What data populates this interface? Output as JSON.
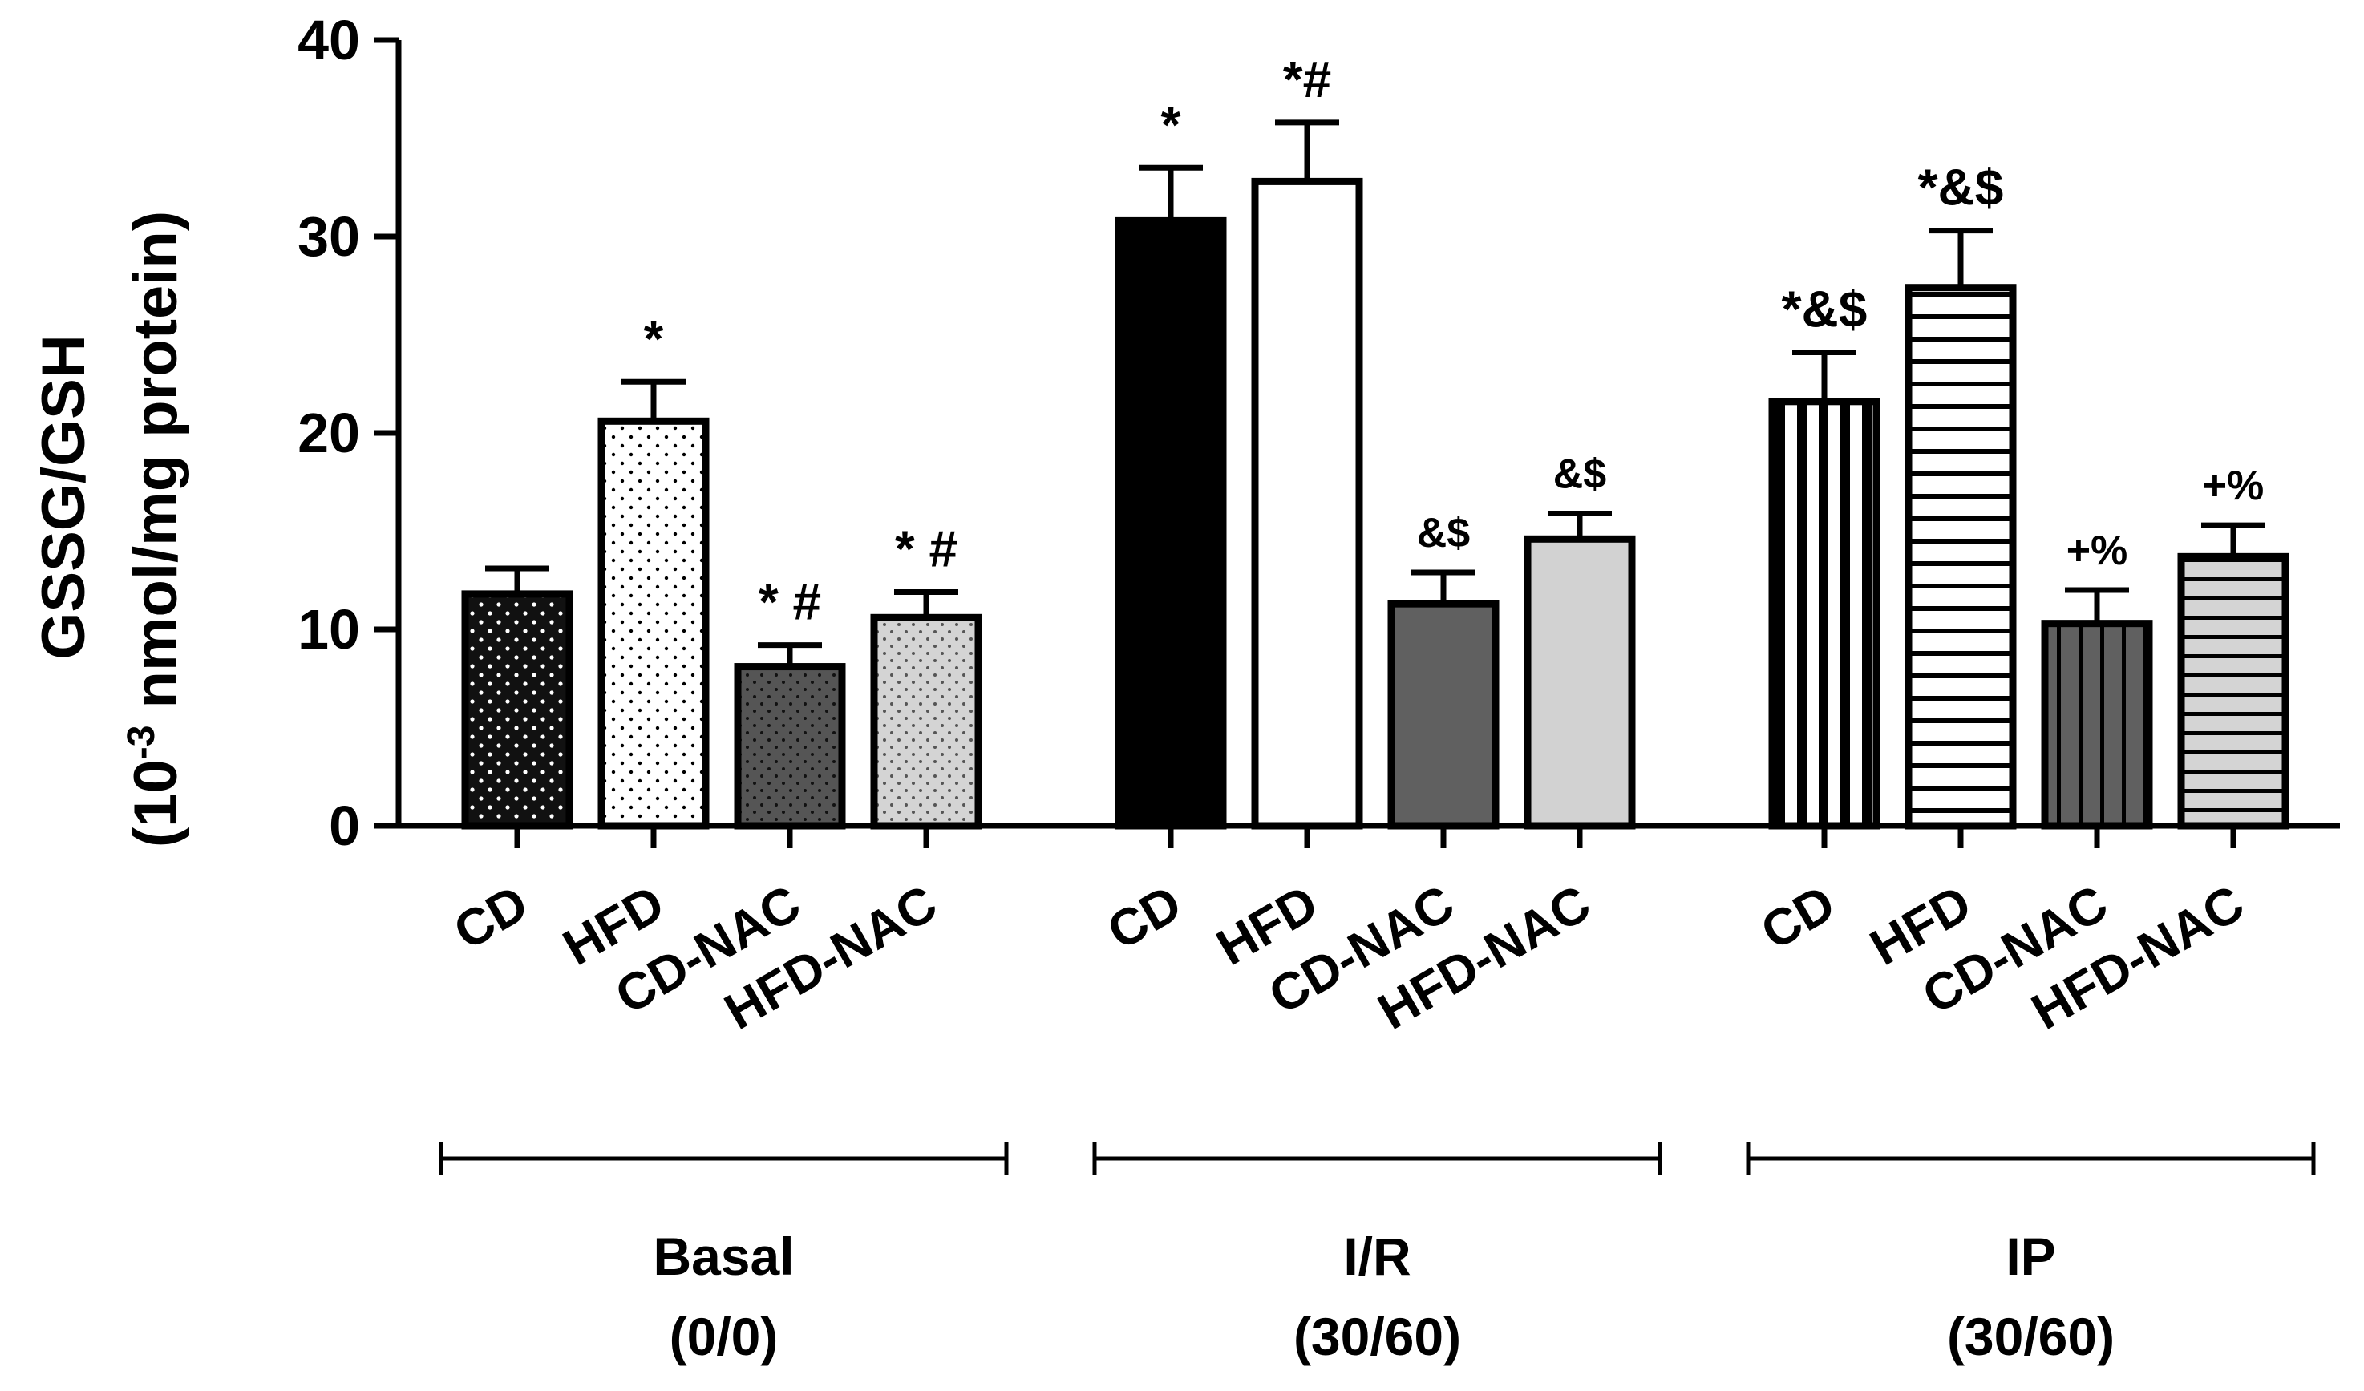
{
  "chart_data": {
    "type": "bar",
    "title": "",
    "ylabel_line1": "GSSG/GSH",
    "ylabel_line2_prefix": "(10",
    "ylabel_line2_exp": "-3",
    "ylabel_line2_suffix": " nmol/mg protein)",
    "ylim": [
      0,
      40
    ],
    "yticks": [
      "0",
      "10",
      "20",
      "30",
      "40"
    ],
    "ytick_values": [
      0,
      10,
      20,
      30,
      40
    ],
    "groups": [
      {
        "name": "Basal",
        "subtitle": "(0/0)",
        "bars": [
          {
            "category": "CD",
            "value": 11.8,
            "error": 1.3,
            "annotation": "",
            "fill": "#1a1a1a",
            "pattern": "dots-white"
          },
          {
            "category": "HFD",
            "value": 20.6,
            "error": 2.0,
            "annotation": "*",
            "fill": "#ffffff",
            "pattern": "dots-black"
          },
          {
            "category": "CD-NAC",
            "value": 8.1,
            "error": 1.1,
            "annotation": "* #",
            "fill": "#555555",
            "pattern": "dots-dark"
          },
          {
            "category": "HFD-NAC",
            "value": 10.6,
            "error": 1.3,
            "annotation": "*  #",
            "fill": "#d4d4d4",
            "pattern": "dots-dark"
          }
        ]
      },
      {
        "name": "I/R",
        "subtitle": "(30/60)",
        "bars": [
          {
            "category": "CD",
            "value": 30.8,
            "error": 2.7,
            "annotation": "*",
            "fill": "#000000",
            "pattern": "solid"
          },
          {
            "category": "HFD",
            "value": 32.8,
            "error": 3.0,
            "annotation": "*#",
            "fill": "#ffffff",
            "pattern": "solid"
          },
          {
            "category": "CD-NAC",
            "value": 11.3,
            "error": 1.6,
            "annotation": "&$",
            "fill": "#606060",
            "pattern": "solid"
          },
          {
            "category": "HFD-NAC",
            "value": 14.6,
            "error": 1.3,
            "annotation": "&$",
            "fill": "#d2d2d2",
            "pattern": "solid"
          }
        ]
      },
      {
        "name": "IP",
        "subtitle": "(30/60)",
        "bars": [
          {
            "category": "CD",
            "value": 21.6,
            "error": 2.5,
            "annotation": "*&$",
            "fill": "#ffffff",
            "pattern": "vstripes"
          },
          {
            "category": "HFD",
            "value": 27.4,
            "error": 2.9,
            "annotation": "*&$",
            "fill": "#ffffff",
            "pattern": "hstripes"
          },
          {
            "category": "CD-NAC",
            "value": 10.3,
            "error": 1.7,
            "annotation": "+%",
            "fill": "#606060",
            "pattern": "vstripes-gray"
          },
          {
            "category": "HFD-NAC",
            "value": 13.7,
            "error": 1.6,
            "annotation": "+%",
            "fill": "#d4d4d4",
            "pattern": "hstripes-gray"
          }
        ]
      }
    ],
    "legend": "none",
    "grid": false
  }
}
